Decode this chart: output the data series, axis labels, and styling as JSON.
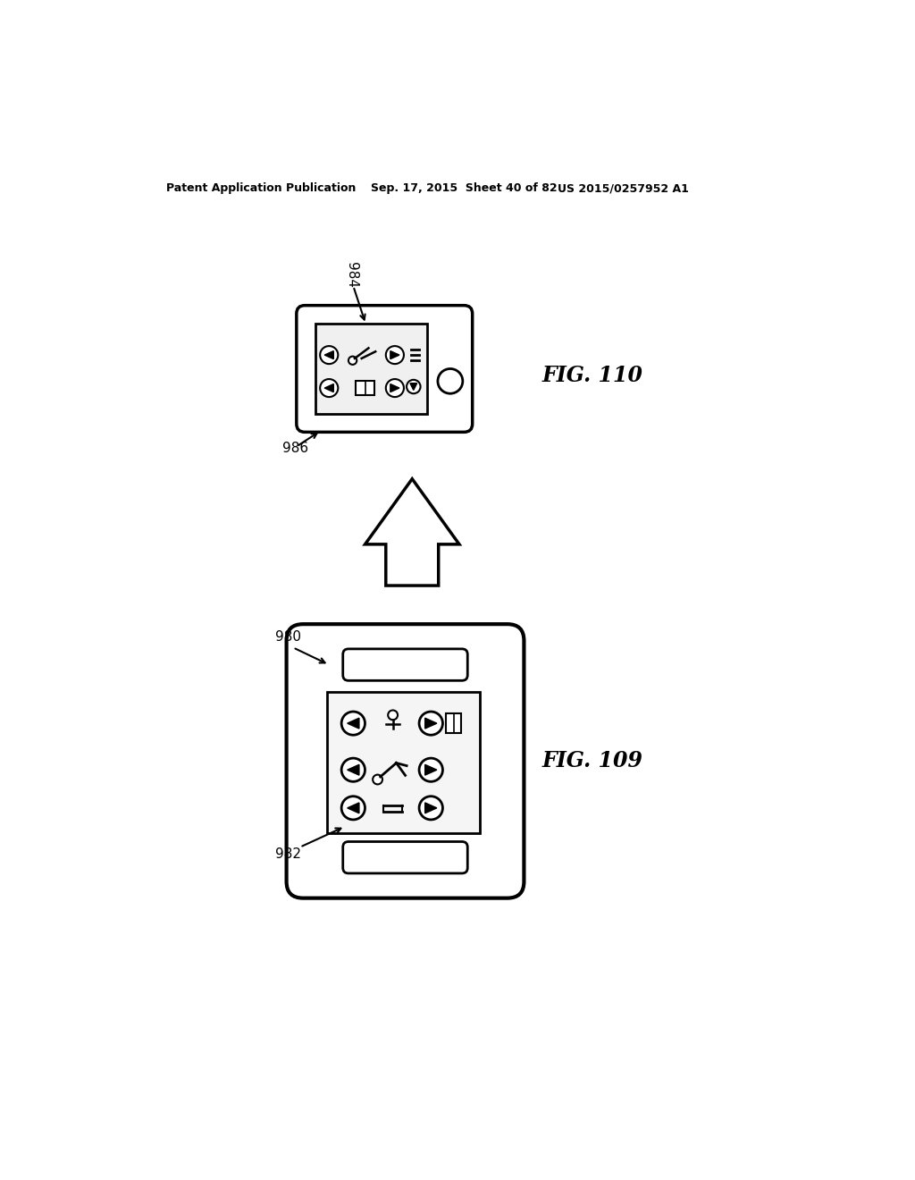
{
  "bg_color": "#ffffff",
  "header_left": "Patent Application Publication",
  "header_mid": "Sep. 17, 2015  Sheet 40 of 82",
  "header_right": "US 2015/0257952 A1",
  "fig110_label": "FIG. 110",
  "fig109_label": "FIG. 109",
  "label_984": "984",
  "label_986": "986",
  "label_980": "980",
  "label_982": "982"
}
